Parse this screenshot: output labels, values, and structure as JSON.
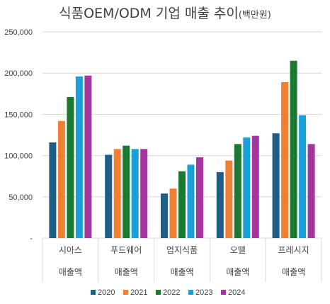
{
  "chart_data": {
    "type": "bar",
    "title": "식품OEM/ODM 기업 매출 추이",
    "subtitle": "(백만원)",
    "categories": [
      [
        "시아스",
        "매출액"
      ],
      [
        "푸드웨어",
        "매출액"
      ],
      [
        "엄지식품",
        "매출액"
      ],
      [
        "오뗄",
        "매출액"
      ],
      [
        "프레시지",
        "매출액"
      ]
    ],
    "series": [
      {
        "name": "2020",
        "color": "#1f5f87",
        "values": [
          116000,
          101000,
          54000,
          80000,
          127000
        ]
      },
      {
        "name": "2021",
        "color": "#f07f33",
        "values": [
          142000,
          108000,
          60000,
          94000,
          189000
        ]
      },
      {
        "name": "2022",
        "color": "#1b7a32",
        "values": [
          171000,
          112000,
          81000,
          114000,
          215000
        ]
      },
      {
        "name": "2023",
        "color": "#1aa0d9",
        "values": [
          196000,
          108000,
          89000,
          122000,
          149000
        ]
      },
      {
        "name": "2024",
        "color": "#a3359e",
        "values": [
          197000,
          108000,
          98000,
          124000,
          114000
        ]
      }
    ],
    "ylim": [
      0,
      250000
    ],
    "yticks": [
      0,
      50000,
      100000,
      150000,
      200000,
      250000
    ],
    "ytick_labels": [
      "-",
      "50,000",
      "100,000",
      "150,000",
      "200,000",
      "250,000"
    ],
    "grid": true,
    "legend_position": "bottom"
  }
}
